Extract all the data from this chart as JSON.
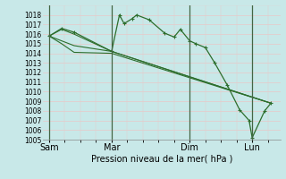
{
  "background_color": "#c8e8e8",
  "plot_bg_color": "#c8e8e8",
  "grid_major_color": "#e8c8c8",
  "grid_minor_color": "#e8c8c8",
  "line_color": "#2d6e2d",
  "marker_color": "#2d6e2d",
  "xlabel_text": "Pression niveau de la mer( hPa )",
  "ylim": [
    1005,
    1019
  ],
  "ytick_min": 1005,
  "ytick_max": 1018,
  "xtick_labels": [
    "Sam",
    "Mar",
    "Dim",
    "Lun"
  ],
  "xtick_positions": [
    0.0,
    2.0,
    4.5,
    6.5
  ],
  "vline_positions": [
    0.0,
    2.0,
    4.5,
    6.5
  ],
  "series_main": {
    "x": [
      0.0,
      0.4,
      0.8,
      2.0,
      2.25,
      2.4,
      2.65,
      2.8,
      3.2,
      3.7,
      4.0,
      4.2,
      4.5,
      4.7,
      5.0,
      5.3,
      5.7,
      6.1,
      6.4,
      6.5,
      6.9,
      7.1
    ],
    "y": [
      1015.8,
      1016.6,
      1016.2,
      1014.2,
      1018.0,
      1017.1,
      1017.6,
      1018.0,
      1017.5,
      1016.1,
      1015.7,
      1016.5,
      1015.3,
      1015.0,
      1014.6,
      1013.0,
      1010.7,
      1008.1,
      1007.0,
      1005.2,
      1008.0,
      1008.8
    ]
  },
  "series_lines": [
    {
      "x": [
        0.0,
        0.4,
        0.8,
        2.0,
        7.1
      ],
      "y": [
        1015.8,
        1016.5,
        1016.0,
        1014.2,
        1008.8
      ]
    },
    {
      "x": [
        0.0,
        0.4,
        0.8,
        2.0,
        7.1
      ],
      "y": [
        1015.8,
        1015.3,
        1014.8,
        1014.2,
        1008.8
      ]
    },
    {
      "x": [
        0.0,
        0.4,
        0.8,
        2.0,
        7.1
      ],
      "y": [
        1015.8,
        1015.0,
        1014.1,
        1014.0,
        1008.8
      ]
    }
  ]
}
